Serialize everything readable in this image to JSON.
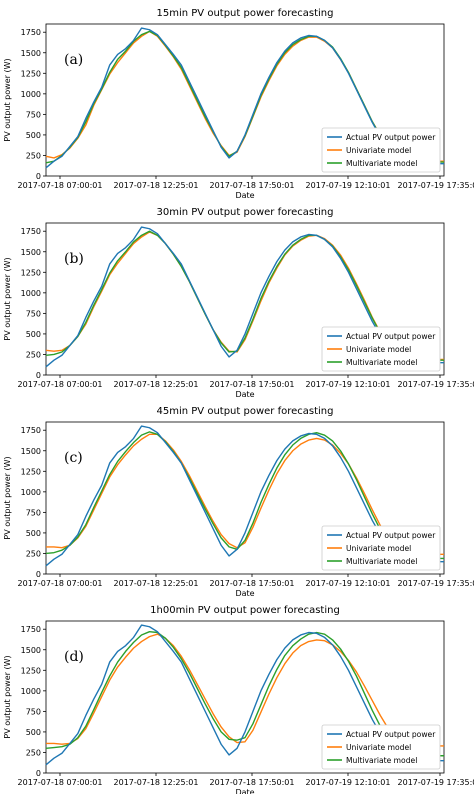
{
  "colors": {
    "actual": "#1f77b4",
    "univariate": "#ff7f0e",
    "multivariate": "#2ca02c"
  },
  "chart_data": [
    {
      "type": "line",
      "panel_label": "(a)",
      "title": "15min PV output power forecasting",
      "xlabel": "Date",
      "ylabel": "PV output power (W)",
      "xticks": [
        "2017-07-18 07:00:01",
        "2017-07-18 12:25:01",
        "2017-07-18 17:50:01",
        "2017-07-19 12:10:01",
        "2017-07-19 17:35:01"
      ],
      "yticks": [
        0,
        250,
        500,
        750,
        1000,
        1250,
        1500,
        1750
      ],
      "ylim": [
        0,
        1850
      ],
      "legend_position": "lower right",
      "grid": false,
      "x": [
        0,
        2,
        4,
        6,
        8,
        10,
        12,
        14,
        16,
        18,
        20,
        22,
        24,
        26,
        28,
        30,
        32,
        34,
        36,
        38,
        40,
        42,
        44,
        46,
        48,
        50,
        52,
        54,
        56,
        58,
        60,
        62,
        64,
        66,
        68,
        70,
        72,
        74,
        76,
        78,
        80,
        82,
        84,
        86,
        88,
        90,
        92,
        94,
        96,
        98,
        100
      ],
      "series": [
        {
          "name": "Actual PV output power",
          "color": "#1f77b4",
          "values": [
            100,
            180,
            240,
            360,
            480,
            700,
            900,
            1080,
            1350,
            1480,
            1550,
            1650,
            1800,
            1780,
            1720,
            1600,
            1480,
            1350,
            1150,
            950,
            750,
            550,
            350,
            220,
            300,
            500,
            750,
            1000,
            1200,
            1380,
            1520,
            1620,
            1680,
            1710,
            1700,
            1650,
            1560,
            1420,
            1250,
            1050,
            850,
            650,
            480,
            320,
            200,
            150,
            150,
            150,
            150,
            150,
            150
          ]
        },
        {
          "name": "Univariate model",
          "color": "#ff7f0e",
          "values": [
            240,
            220,
            260,
            340,
            460,
            620,
            860,
            1050,
            1240,
            1380,
            1500,
            1620,
            1700,
            1760,
            1700,
            1580,
            1450,
            1300,
            1100,
            900,
            700,
            520,
            370,
            250,
            290,
            480,
            720,
            960,
            1160,
            1340,
            1480,
            1580,
            1650,
            1690,
            1690,
            1640,
            1560,
            1420,
            1260,
            1060,
            860,
            660,
            500,
            350,
            230,
            180,
            180,
            180,
            180,
            180,
            180
          ]
        },
        {
          "name": "Multivariate model",
          "color": "#2ca02c",
          "values": [
            160,
            180,
            250,
            350,
            470,
            660,
            880,
            1060,
            1260,
            1420,
            1520,
            1640,
            1720,
            1760,
            1710,
            1590,
            1460,
            1320,
            1120,
            920,
            720,
            540,
            360,
            240,
            300,
            490,
            730,
            980,
            1180,
            1360,
            1500,
            1600,
            1660,
            1700,
            1700,
            1650,
            1570,
            1430,
            1260,
            1060,
            860,
            660,
            490,
            340,
            220,
            170,
            170,
            170,
            170,
            170,
            170
          ]
        }
      ]
    },
    {
      "type": "line",
      "panel_label": "(b)",
      "title": "30min PV output power forecasting",
      "xlabel": "Date",
      "ylabel": "PV output power (W)",
      "xticks": [
        "2017-07-18 07:00:01",
        "2017-07-18 12:25:01",
        "2017-07-18 17:50:01",
        "2017-07-19 12:10:01",
        "2017-07-19 17:35:01"
      ],
      "yticks": [
        0,
        250,
        500,
        750,
        1000,
        1250,
        1500,
        1750
      ],
      "ylim": [
        0,
        1850
      ],
      "legend_position": "lower right",
      "grid": false,
      "x": [
        0,
        2,
        4,
        6,
        8,
        10,
        12,
        14,
        16,
        18,
        20,
        22,
        24,
        26,
        28,
        30,
        32,
        34,
        36,
        38,
        40,
        42,
        44,
        46,
        48,
        50,
        52,
        54,
        56,
        58,
        60,
        62,
        64,
        66,
        68,
        70,
        72,
        74,
        76,
        78,
        80,
        82,
        84,
        86,
        88,
        90,
        92,
        94,
        96,
        98,
        100
      ],
      "series": [
        {
          "name": "Actual PV output power",
          "color": "#1f77b4",
          "values": [
            100,
            180,
            240,
            360,
            480,
            700,
            900,
            1080,
            1350,
            1480,
            1550,
            1650,
            1800,
            1780,
            1720,
            1600,
            1480,
            1350,
            1150,
            950,
            750,
            550,
            350,
            220,
            300,
            500,
            750,
            1000,
            1200,
            1380,
            1520,
            1620,
            1680,
            1710,
            1700,
            1650,
            1560,
            1420,
            1250,
            1050,
            850,
            650,
            480,
            320,
            200,
            150,
            150,
            150,
            150,
            150,
            150
          ]
        },
        {
          "name": "Univariate model",
          "color": "#ff7f0e",
          "values": [
            300,
            290,
            300,
            360,
            470,
            620,
            830,
            1020,
            1220,
            1360,
            1480,
            1600,
            1680,
            1740,
            1700,
            1600,
            1470,
            1320,
            1140,
            940,
            740,
            550,
            400,
            290,
            280,
            430,
            660,
            900,
            1120,
            1300,
            1460,
            1570,
            1640,
            1690,
            1700,
            1660,
            1580,
            1460,
            1300,
            1110,
            910,
            700,
            520,
            370,
            240,
            190,
            190,
            190,
            190,
            190,
            190
          ]
        },
        {
          "name": "Multivariate model",
          "color": "#2ca02c",
          "values": [
            240,
            250,
            280,
            360,
            470,
            640,
            850,
            1040,
            1240,
            1390,
            1500,
            1620,
            1700,
            1750,
            1700,
            1600,
            1470,
            1320,
            1140,
            940,
            740,
            550,
            390,
            280,
            290,
            450,
            680,
            930,
            1140,
            1320,
            1470,
            1580,
            1650,
            1700,
            1700,
            1650,
            1570,
            1440,
            1280,
            1090,
            890,
            690,
            510,
            360,
            230,
            180,
            180,
            180,
            180,
            180,
            180
          ]
        }
      ]
    },
    {
      "type": "line",
      "panel_label": "(c)",
      "title": "45min PV output power forecasting",
      "xlabel": "Date",
      "ylabel": "PV output power (W)",
      "xticks": [
        "2017-07-18 07:00:01",
        "2017-07-18 12:25:01",
        "2017-07-18 17:50:01",
        "2017-07-19 12:10:01",
        "2017-07-19 17:35:01"
      ],
      "yticks": [
        0,
        250,
        500,
        750,
        1000,
        1250,
        1500,
        1750
      ],
      "ylim": [
        0,
        1850
      ],
      "legend_position": "lower right",
      "grid": false,
      "x": [
        0,
        2,
        4,
        6,
        8,
        10,
        12,
        14,
        16,
        18,
        20,
        22,
        24,
        26,
        28,
        30,
        32,
        34,
        36,
        38,
        40,
        42,
        44,
        46,
        48,
        50,
        52,
        54,
        56,
        58,
        60,
        62,
        64,
        66,
        68,
        70,
        72,
        74,
        76,
        78,
        80,
        82,
        84,
        86,
        88,
        90,
        92,
        94,
        96,
        98,
        100
      ],
      "series": [
        {
          "name": "Actual PV output power",
          "color": "#1f77b4",
          "values": [
            100,
            180,
            240,
            360,
            480,
            700,
            900,
            1080,
            1350,
            1480,
            1550,
            1650,
            1800,
            1780,
            1720,
            1600,
            1480,
            1350,
            1150,
            950,
            750,
            550,
            350,
            220,
            300,
            500,
            750,
            1000,
            1200,
            1380,
            1520,
            1620,
            1680,
            1710,
            1700,
            1650,
            1560,
            1420,
            1250,
            1050,
            850,
            650,
            480,
            320,
            200,
            150,
            150,
            150,
            150,
            150,
            150
          ]
        },
        {
          "name": "Univariate model",
          "color": "#ff7f0e",
          "values": [
            330,
            330,
            320,
            350,
            440,
            580,
            780,
            980,
            1180,
            1330,
            1450,
            1560,
            1640,
            1700,
            1700,
            1620,
            1510,
            1370,
            1200,
            1010,
            820,
            640,
            480,
            370,
            320,
            380,
            570,
            800,
            1020,
            1220,
            1380,
            1500,
            1580,
            1630,
            1650,
            1630,
            1570,
            1470,
            1340,
            1170,
            980,
            780,
            590,
            440,
            310,
            240,
            240,
            240,
            240,
            240,
            240
          ]
        },
        {
          "name": "Multivariate model",
          "color": "#2ca02c",
          "values": [
            250,
            260,
            290,
            350,
            450,
            600,
            810,
            1010,
            1210,
            1370,
            1490,
            1600,
            1690,
            1730,
            1700,
            1610,
            1490,
            1350,
            1170,
            980,
            790,
            610,
            440,
            330,
            300,
            410,
            620,
            870,
            1090,
            1290,
            1450,
            1570,
            1650,
            1700,
            1720,
            1690,
            1620,
            1500,
            1340,
            1150,
            940,
            730,
            540,
            380,
            250,
            190,
            190,
            190,
            190,
            190,
            190
          ]
        }
      ]
    },
    {
      "type": "line",
      "panel_label": "(d)",
      "title": "1h00min PV output power forecasting",
      "xlabel": "Date",
      "ylabel": "PV output power (W)",
      "xticks": [
        "2017-07-18 07:00:01",
        "2017-07-18 12:25:01",
        "2017-07-18 17:50:01",
        "2017-07-19 12:10:01",
        "2017-07-19 17:35:01"
      ],
      "yticks": [
        0,
        250,
        500,
        750,
        1000,
        1250,
        1500,
        1750
      ],
      "ylim": [
        0,
        1850
      ],
      "legend_position": "lower right",
      "grid": false,
      "x": [
        0,
        2,
        4,
        6,
        8,
        10,
        12,
        14,
        16,
        18,
        20,
        22,
        24,
        26,
        28,
        30,
        32,
        34,
        36,
        38,
        40,
        42,
        44,
        46,
        48,
        50,
        52,
        54,
        56,
        58,
        60,
        62,
        64,
        66,
        68,
        70,
        72,
        74,
        76,
        78,
        80,
        82,
        84,
        86,
        88,
        90,
        92,
        94,
        96,
        98,
        100
      ],
      "series": [
        {
          "name": "Actual PV output power",
          "color": "#1f77b4",
          "values": [
            100,
            180,
            240,
            360,
            480,
            700,
            900,
            1080,
            1350,
            1480,
            1550,
            1650,
            1800,
            1780,
            1720,
            1600,
            1480,
            1350,
            1150,
            950,
            750,
            550,
            350,
            220,
            300,
            500,
            750,
            1000,
            1200,
            1380,
            1520,
            1620,
            1680,
            1710,
            1700,
            1650,
            1560,
            1420,
            1250,
            1050,
            850,
            650,
            480,
            320,
            200,
            150,
            150,
            150,
            150,
            150,
            150
          ]
        },
        {
          "name": "Univariate model",
          "color": "#ff7f0e",
          "values": [
            360,
            360,
            350,
            360,
            420,
            540,
            730,
            930,
            1130,
            1290,
            1410,
            1520,
            1600,
            1660,
            1690,
            1640,
            1550,
            1420,
            1260,
            1080,
            900,
            720,
            560,
            440,
            370,
            380,
            520,
            740,
            960,
            1160,
            1330,
            1460,
            1550,
            1600,
            1620,
            1610,
            1560,
            1480,
            1370,
            1230,
            1060,
            880,
            700,
            540,
            410,
            330,
            330,
            330,
            330,
            330,
            330
          ]
        },
        {
          "name": "Multivariate model",
          "color": "#2ca02c",
          "values": [
            300,
            310,
            320,
            350,
            430,
            570,
            770,
            980,
            1180,
            1350,
            1480,
            1590,
            1680,
            1720,
            1710,
            1640,
            1530,
            1390,
            1220,
            1030,
            840,
            660,
            500,
            410,
            400,
            430,
            600,
            830,
            1060,
            1260,
            1430,
            1550,
            1630,
            1690,
            1710,
            1690,
            1620,
            1510,
            1360,
            1180,
            970,
            760,
            570,
            410,
            280,
            210,
            210,
            210,
            210,
            210,
            210
          ]
        }
      ]
    }
  ]
}
